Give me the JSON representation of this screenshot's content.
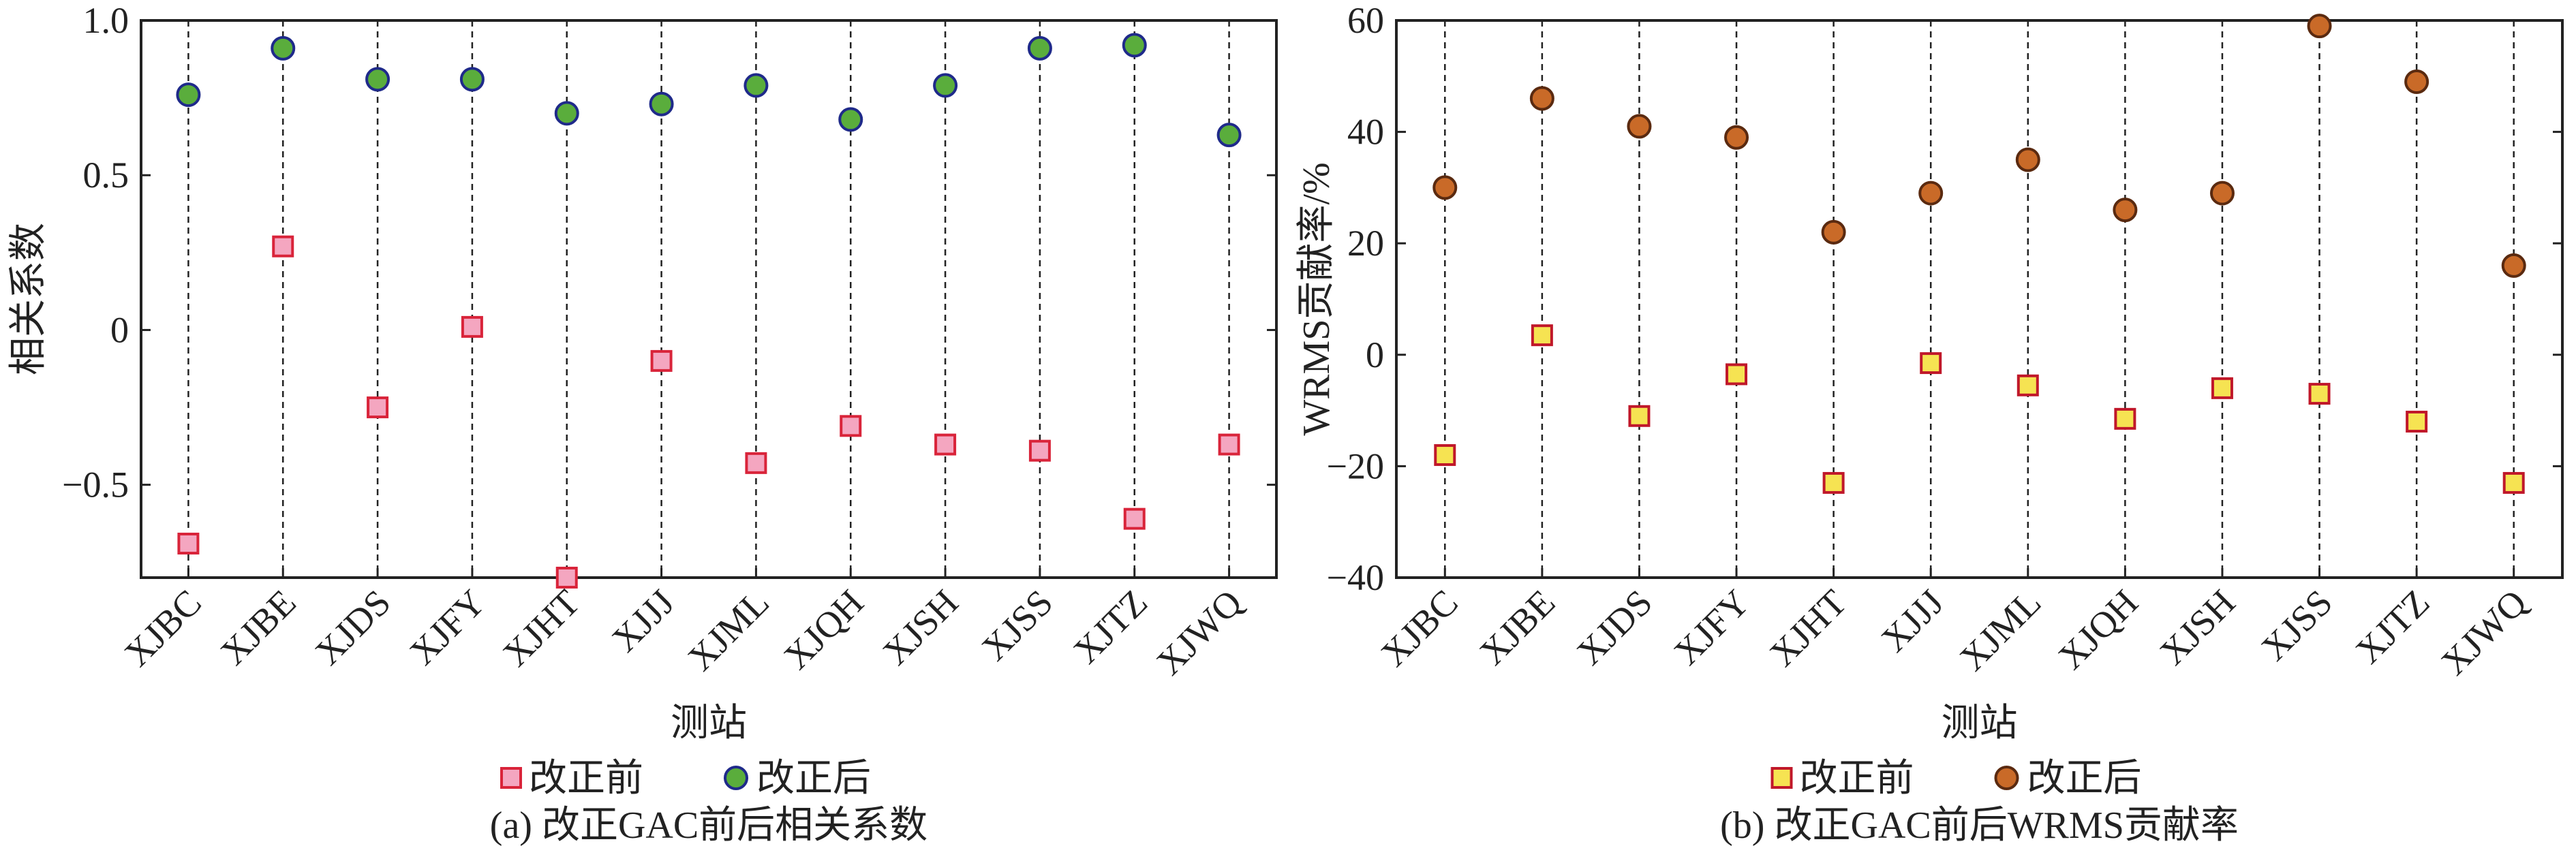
{
  "chart_data": [
    {
      "type": "scatter",
      "panel": "a",
      "caption": "(a) 改正GAC前后相关系数",
      "xlabel": "测站",
      "ylabel": "相关系数",
      "categories": [
        "XJBC",
        "XJBE",
        "XJDS",
        "XJFY",
        "XJHT",
        "XJJJ",
        "XJML",
        "XJQH",
        "XJSH",
        "XJSS",
        "XJTZ",
        "XJWQ"
      ],
      "ylim": [
        -0.8,
        1.0
      ],
      "yticks": [
        1.0,
        0.5,
        0,
        -0.5
      ],
      "ytick_labels": [
        "1.0",
        "0.5",
        "0",
        "−0.5"
      ],
      "grid": false,
      "legend_position": "bottom-center",
      "series": [
        {
          "name": "改正前",
          "marker": "square",
          "fill": "#f4a6c0",
          "edge": "#d9243a",
          "values": [
            -0.69,
            0.27,
            -0.25,
            0.01,
            -0.8,
            -0.1,
            -0.43,
            -0.31,
            -0.37,
            -0.39,
            -0.61,
            -0.37
          ]
        },
        {
          "name": "改正后",
          "marker": "circle",
          "fill": "#5aad3c",
          "edge": "#1f2a8a",
          "values": [
            0.76,
            0.91,
            0.81,
            0.81,
            0.7,
            0.73,
            0.79,
            0.68,
            0.79,
            0.91,
            0.92,
            0.63
          ]
        }
      ]
    },
    {
      "type": "scatter",
      "panel": "b",
      "caption": "(b) 改正GAC前后WRMS贡献率",
      "xlabel": "测站",
      "ylabel": "WRMS贡献率/%",
      "categories": [
        "XJBC",
        "XJBE",
        "XJDS",
        "XJFY",
        "XJHT",
        "XJJJ",
        "XJML",
        "XJQH",
        "XJSH",
        "XJSS",
        "XJTZ",
        "XJWQ"
      ],
      "ylim": [
        -40,
        60
      ],
      "yticks": [
        60,
        40,
        20,
        0,
        -20,
        -40
      ],
      "ytick_labels": [
        "60",
        "40",
        "20",
        "0",
        "−20",
        "−40"
      ],
      "grid": false,
      "legend_position": "bottom-center",
      "series": [
        {
          "name": "改正前",
          "marker": "square",
          "fill": "#f6e352",
          "edge": "#c0182a",
          "values": [
            -18,
            3.5,
            -11,
            -3.5,
            -23,
            -1.5,
            -5.5,
            -11.5,
            -6,
            -7,
            -12,
            -23
          ]
        },
        {
          "name": "改正后",
          "marker": "circle",
          "fill": "#c96a28",
          "edge": "#5a2a10",
          "values": [
            30,
            46,
            41,
            39,
            22,
            29,
            35,
            26,
            29,
            59,
            49,
            16
          ]
        }
      ]
    }
  ]
}
